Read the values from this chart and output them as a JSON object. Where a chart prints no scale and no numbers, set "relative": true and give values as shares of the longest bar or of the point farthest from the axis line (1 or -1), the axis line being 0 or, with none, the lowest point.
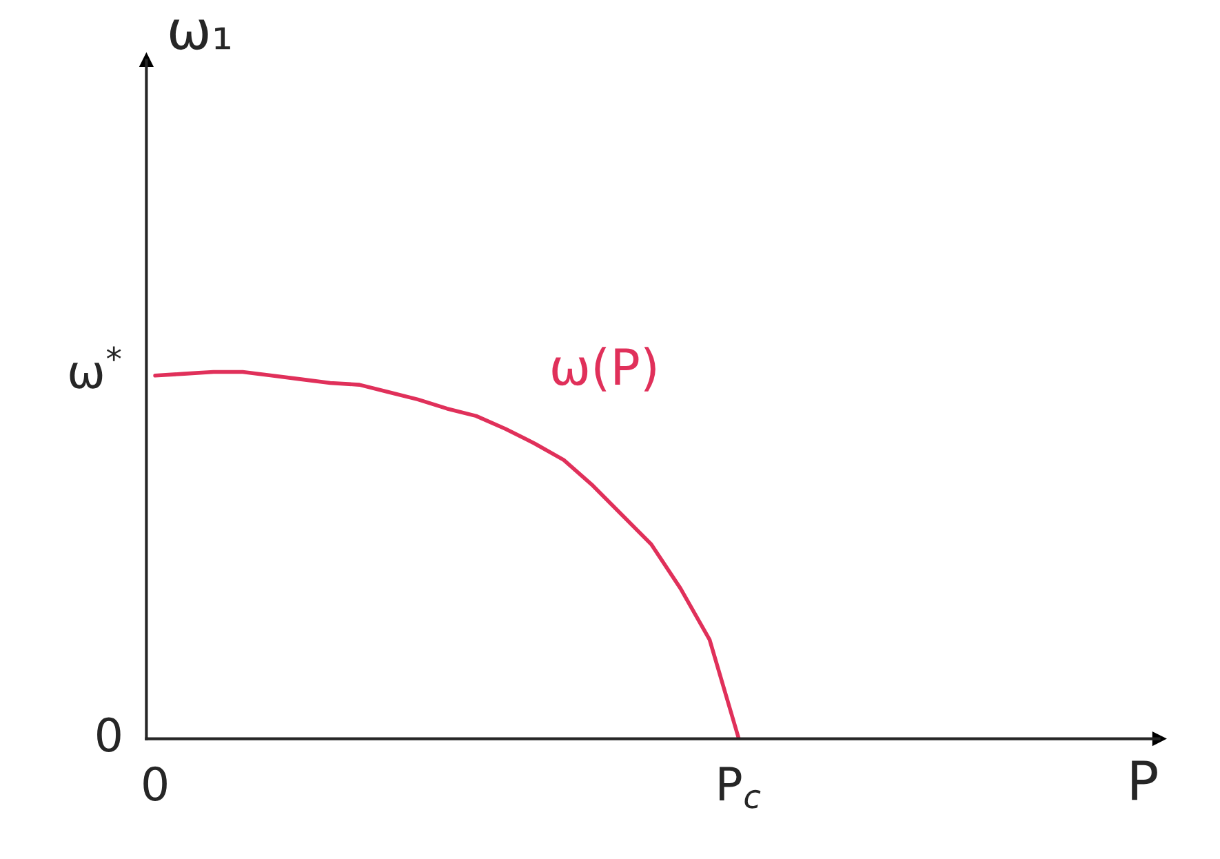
{
  "chart_data": {
    "type": "line",
    "relative": true,
    "categories": [
      "0",
      null,
      null,
      null,
      null,
      null,
      null,
      null,
      null,
      null,
      null,
      null,
      null,
      null,
      null,
      null,
      null,
      null,
      null,
      null,
      "P$_{c}$"
    ],
    "series": [
      {
        "name": "ω(P)",
        "color": "#e0305a",
        "values": [
          0.99,
          0.995,
          1.0,
          1.0,
          0.99,
          0.98,
          0.97,
          0.965,
          0.945,
          0.925,
          0.9,
          0.88,
          0.845,
          0.805,
          0.76,
          0.69,
          0.61,
          0.53,
          0.41,
          0.27,
          0.0
        ]
      }
    ],
    "annotations": [
      "ω$^{*}$",
      "0",
      "ω₁",
      "P"
    ],
    "grid": false,
    "legend": false,
    "marker": "none",
    "line_style": "solid"
  }
}
